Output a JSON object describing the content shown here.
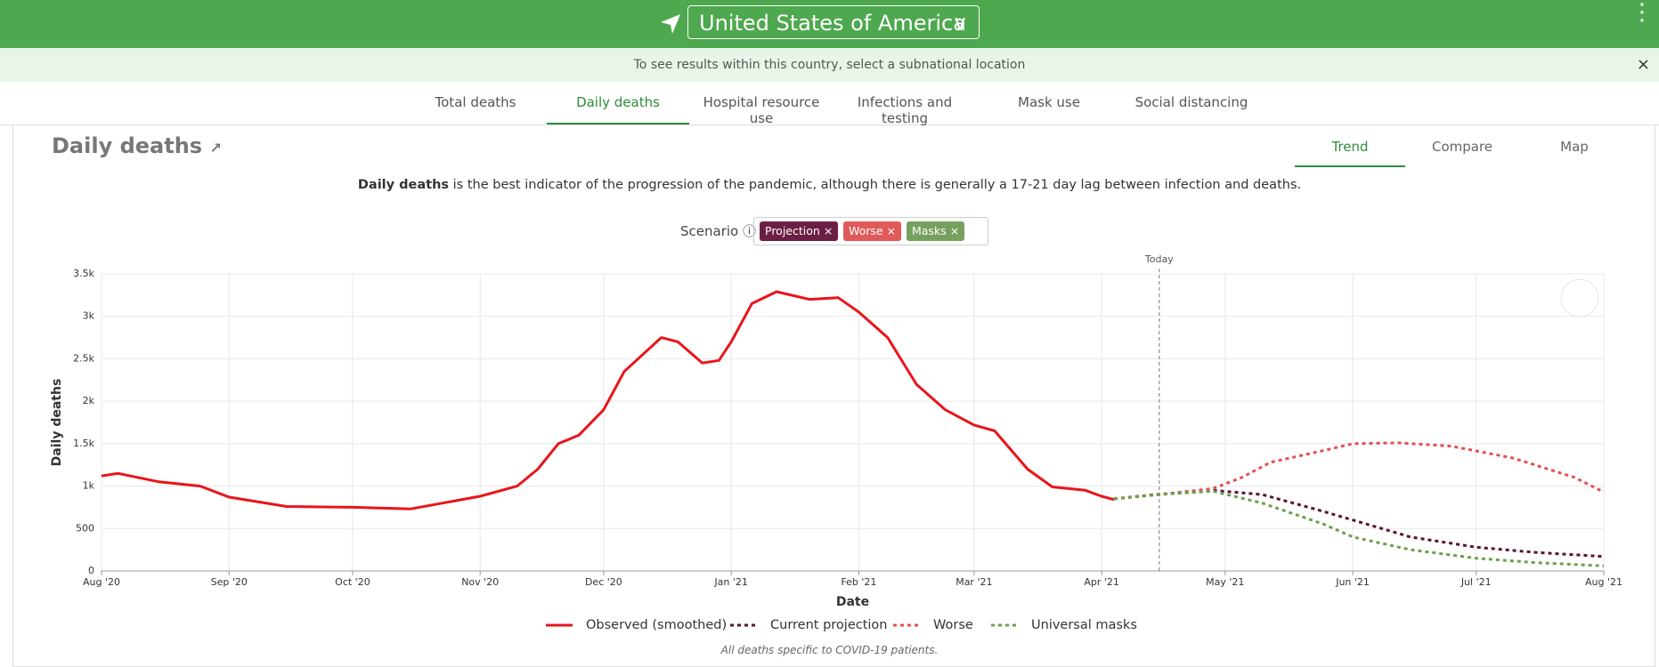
{
  "header": {
    "country": "United States of America"
  },
  "banner": {
    "text": "To see results within this country, select a subnational location"
  },
  "tabs": [
    "Total deaths",
    "Daily deaths",
    "Hospital resource use",
    "Infections and testing",
    "Mask use",
    "Social distancing"
  ],
  "panel": {
    "title": "Daily deaths",
    "views": [
      "Trend",
      "Compare",
      "Map"
    ],
    "description_bold": "Daily deaths",
    "description_rest": " is the best indicator of the progression of the pandemic, although there is generally a 17-21 day lag between infection and deaths.",
    "scenario_label": "Scenario",
    "chips": [
      {
        "label": "Projection",
        "color": "#6b1f45"
      },
      {
        "label": "Worse",
        "color": "#e05a5a"
      },
      {
        "label": "Masks",
        "color": "#76a05e"
      }
    ],
    "footnote": "All deaths specific to COVID-19 patients."
  },
  "chart_data": {
    "type": "line",
    "x_label": "Date",
    "y_label": "Daily deaths",
    "xlim": [
      "2020-08",
      "2021-08"
    ],
    "xticks": [
      {
        "value": "2020-08",
        "label": "Aug '20"
      },
      {
        "value": "2020-09",
        "label": "Sep '20"
      },
      {
        "value": "2020-10",
        "label": "Oct '20"
      },
      {
        "value": "2020-11",
        "label": "Nov '20"
      },
      {
        "value": "2020-12",
        "label": "Dec '20"
      },
      {
        "value": "2021-01",
        "label": "Jan '21"
      },
      {
        "value": "2021-02",
        "label": "Feb '21"
      },
      {
        "value": "2021-03",
        "label": "Mar '21"
      },
      {
        "value": "2021-04",
        "label": "Apr '21"
      },
      {
        "value": "2021-05",
        "label": "May '21"
      },
      {
        "value": "2021-06",
        "label": "Jun '21"
      },
      {
        "value": "2021-07",
        "label": "Jul '21"
      },
      {
        "value": "2021-08",
        "label": "Aug '21"
      }
    ],
    "ylim": [
      0,
      3500
    ],
    "yticks": [
      0,
      500,
      {
        "value": 1000,
        "label": "1k"
      },
      {
        "value": 1500,
        "label": "1.5k"
      },
      {
        "value": 2000,
        "label": "2k"
      },
      {
        "value": 2500,
        "label": "2.5k"
      },
      {
        "value": 3000,
        "label": "3k"
      },
      {
        "value": 3500,
        "label": "3.5k"
      }
    ],
    "grid": true,
    "today": {
      "label": "Today",
      "x": "2021-04-15"
    },
    "series": [
      {
        "name": "Observed (smoothed)",
        "color": "#e8151b",
        "dashed": false,
        "x": [
          "2020-08-01",
          "2020-08-05",
          "2020-08-15",
          "2020-08-25",
          "2020-09-01",
          "2020-09-15",
          "2020-10-01",
          "2020-10-15",
          "2020-11-01",
          "2020-11-10",
          "2020-11-15",
          "2020-11-20",
          "2020-11-25",
          "2020-12-01",
          "2020-12-06",
          "2020-12-15",
          "2020-12-19",
          "2020-12-25",
          "2020-12-29",
          "2021-01-01",
          "2021-01-06",
          "2021-01-12",
          "2021-01-20",
          "2021-01-27",
          "2021-02-01",
          "2021-02-08",
          "2021-02-15",
          "2021-02-22",
          "2021-03-01",
          "2021-03-06",
          "2021-03-14",
          "2021-03-20",
          "2021-03-28",
          "2021-04-01",
          "2021-04-04"
        ],
        "values": [
          1120,
          1150,
          1050,
          1000,
          870,
          760,
          750,
          730,
          880,
          1000,
          1200,
          1500,
          1600,
          1900,
          2350,
          2750,
          2700,
          2450,
          2480,
          2700,
          3150,
          3290,
          3200,
          3220,
          3050,
          2750,
          2200,
          1900,
          1720,
          1650,
          1200,
          990,
          950,
          880,
          840
        ]
      },
      {
        "name": "Current projection",
        "color": "#5c1033",
        "dashed": true,
        "x": [
          "2021-04-04",
          "2021-04-14",
          "2021-04-28",
          "2021-05-10",
          "2021-05-25",
          "2021-06-01",
          "2021-06-15",
          "2021-07-01",
          "2021-07-15",
          "2021-08-01"
        ],
        "values": [
          850,
          900,
          950,
          900,
          700,
          600,
          400,
          280,
          220,
          170
        ]
      },
      {
        "name": "Worse",
        "color": "#e35050",
        "dashed": true,
        "x": [
          "2021-04-04",
          "2021-04-15",
          "2021-04-28",
          "2021-05-05",
          "2021-05-12",
          "2021-05-25",
          "2021-06-01",
          "2021-06-12",
          "2021-06-25",
          "2021-07-10",
          "2021-07-25",
          "2021-08-01"
        ],
        "values": [
          850,
          900,
          970,
          1100,
          1280,
          1420,
          1500,
          1510,
          1470,
          1330,
          1100,
          930
        ]
      },
      {
        "name": "Universal masks",
        "color": "#6ea04a",
        "dashed": true,
        "x": [
          "2021-04-04",
          "2021-04-15",
          "2021-04-28",
          "2021-05-10",
          "2021-05-25",
          "2021-06-01",
          "2021-06-15",
          "2021-07-01",
          "2021-07-15",
          "2021-08-01"
        ],
        "values": [
          850,
          900,
          940,
          800,
          550,
          400,
          250,
          150,
          100,
          60
        ]
      }
    ]
  }
}
